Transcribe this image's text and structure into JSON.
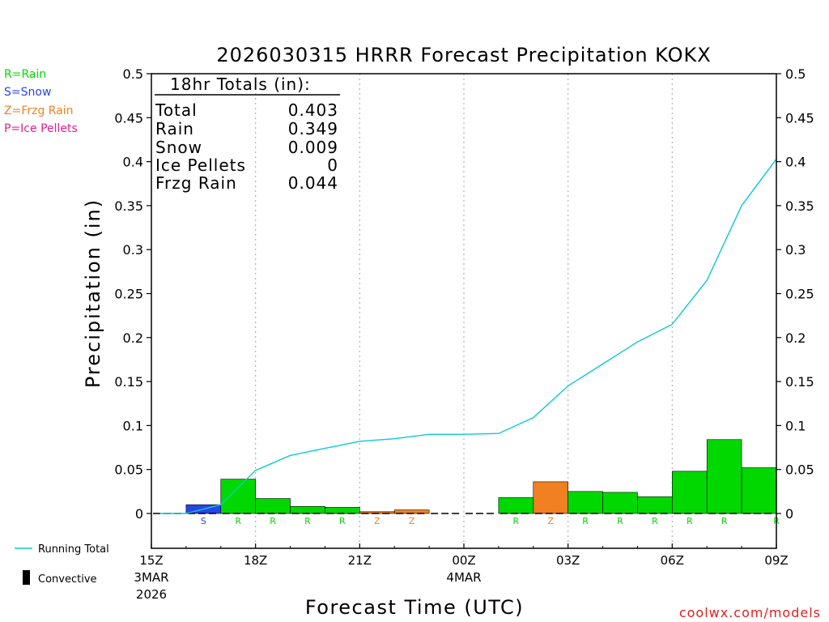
{
  "chart_data": {
    "type": "bar",
    "title": "2026030315 HRRR Forecast Precipitation KOKX",
    "ylabel": "Precipitation (in)",
    "xlabel": "Forecast Time (UTC)",
    "ylim": [
      -0.04,
      0.5
    ],
    "y_ticks": [
      0,
      0.05,
      0.1,
      0.15,
      0.2,
      0.25,
      0.3,
      0.35,
      0.4,
      0.45,
      0.5
    ],
    "x_range_hours": [
      0,
      18
    ],
    "x_ticks": [
      {
        "hour": 0,
        "label": "15Z",
        "sub1": "3MAR",
        "sub2": "2026"
      },
      {
        "hour": 3,
        "label": "18Z",
        "sub1": "",
        "sub2": ""
      },
      {
        "hour": 6,
        "label": "21Z",
        "sub1": "",
        "sub2": ""
      },
      {
        "hour": 9,
        "label": "00Z",
        "sub1": "4MAR",
        "sub2": ""
      },
      {
        "hour": 12,
        "label": "03Z",
        "sub1": "",
        "sub2": ""
      },
      {
        "hour": 15,
        "label": "06Z",
        "sub1": "",
        "sub2": ""
      },
      {
        "hour": 18,
        "label": "09Z",
        "sub1": "",
        "sub2": ""
      }
    ],
    "grid": "vertical dotted at 18Z, 21Z, 00Z, 03Z, 06Z",
    "bars": [
      {
        "hour": 1,
        "value": 0.0,
        "type": "",
        "color": ""
      },
      {
        "hour": 2,
        "value": 0.01,
        "type": "S",
        "color": "#2845e8"
      },
      {
        "hour": 3,
        "value": 0.039,
        "type": "R",
        "color": "#00d800"
      },
      {
        "hour": 4,
        "value": 0.017,
        "type": "R",
        "color": "#00d800"
      },
      {
        "hour": 5,
        "value": 0.008,
        "type": "R",
        "color": "#00d800"
      },
      {
        "hour": 6,
        "value": 0.007,
        "type": "R",
        "color": "#00d800"
      },
      {
        "hour": 7,
        "value": 0.002,
        "type": "Z",
        "color": "#f08020"
      },
      {
        "hour": 8,
        "value": 0.004,
        "type": "Z",
        "color": "#f08020"
      },
      {
        "hour": 9,
        "value": 0.0,
        "type": "",
        "color": ""
      },
      {
        "hour": 10,
        "value": 0.0,
        "type": "",
        "color": ""
      },
      {
        "hour": 11,
        "value": 0.018,
        "type": "R",
        "color": "#00d800"
      },
      {
        "hour": 12,
        "value": 0.036,
        "type": "Z",
        "color": "#f08020"
      },
      {
        "hour": 13,
        "value": 0.025,
        "type": "R",
        "color": "#00d800"
      },
      {
        "hour": 14,
        "value": 0.024,
        "type": "R",
        "color": "#00d800"
      },
      {
        "hour": 15,
        "value": 0.019,
        "type": "R",
        "color": "#00d800"
      },
      {
        "hour": 16,
        "value": 0.048,
        "type": "R",
        "color": "#00d800"
      },
      {
        "hour": 17,
        "value": 0.084,
        "type": "R",
        "color": "#00d800"
      },
      {
        "hour": 18,
        "value": 0.052,
        "type": "R",
        "color": "#00d800"
      }
    ],
    "running_total": {
      "name": "Running Total",
      "color": "#10c8d0",
      "hours": [
        0.25,
        1,
        2,
        3,
        4,
        5,
        6,
        7,
        8,
        9,
        10,
        11,
        12,
        13,
        14,
        15,
        16,
        17,
        18
      ],
      "values": [
        0.0,
        0.0,
        0.01,
        0.049,
        0.066,
        0.074,
        0.082,
        0.085,
        0.09,
        0.09,
        0.091,
        0.109,
        0.145,
        0.17,
        0.195,
        0.215,
        0.265,
        0.35,
        0.403
      ]
    },
    "totals_box": {
      "heading": "18hr Totals (in):",
      "rows": [
        {
          "label": "Total",
          "value": "0.403"
        },
        {
          "label": "Rain",
          "value": "0.349"
        },
        {
          "label": "Snow",
          "value": "0.009"
        },
        {
          "label": "Ice Pellets",
          "value": "0"
        },
        {
          "label": "Frzg Rain",
          "value": "0.044"
        }
      ]
    },
    "type_legend": [
      {
        "text": "R=Rain",
        "color": "#00d800"
      },
      {
        "text": "S=Snow",
        "color": "#2845e8"
      },
      {
        "text": "Z=Frzg Rain",
        "color": "#f08020"
      },
      {
        "text": "P=Ice Pellets",
        "color": "#e02090"
      }
    ],
    "bottom_legend": {
      "running_total_label": "Running Total",
      "convective_label": "Convective"
    },
    "credit": "coolwx.com/models",
    "credit_color": "#e02020"
  }
}
